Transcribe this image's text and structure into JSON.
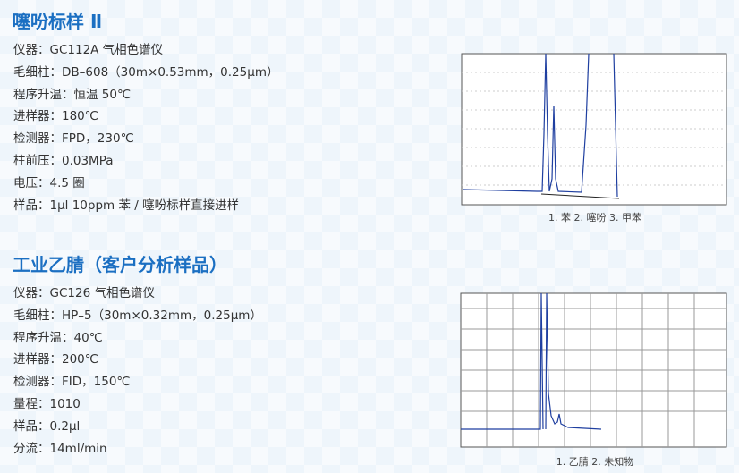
{
  "sections": [
    {
      "title": "噻吩标样 Ⅱ",
      "lines": [
        "仪器：GC112A 气相色谱仪",
        "毛细柱：DB–608（30m×0.53mm，0.25μm）",
        "程序升温：恒温 50℃",
        "进样器：180℃",
        "检测器：FPD，230℃",
        "柱前压：0.03MPa",
        "电压：4.5 圈",
        "样品：1μl 10ppm 苯 / 噻吩标样直接进样"
      ],
      "caption": "1. 苯 2. 噻吩 3. 甲苯"
    },
    {
      "title": "工业乙腈（客户分析样品）",
      "lines": [
        "仪器：GC126 气相色谱仪",
        "毛细柱：HP–5（30m×0.32mm，0.25μm）",
        "程序升温：40℃",
        "进样器：200℃",
        "检测器：FID，150℃",
        "量程：1010",
        "样品：0.2μl",
        "分流：14ml/min"
      ],
      "caption": "1. 乙腈 2. 未知物"
    }
  ]
}
